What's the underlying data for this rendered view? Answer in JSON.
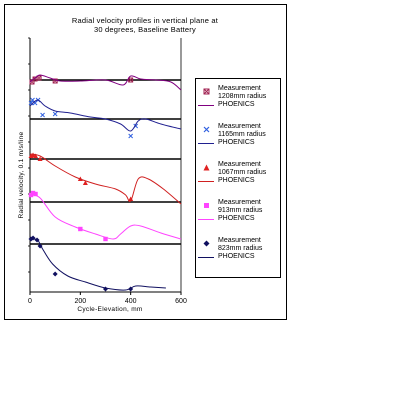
{
  "chart_data": {
    "type": "line",
    "title": "Radial velocity profiles in vertical plane at",
    "subtitle": "30 degrees, Baseline Battery",
    "xlabel": "Cycle-Elevation, mm",
    "ylabel": "Radial velocity, 0.1 m/s/line",
    "xlim": [
      0,
      600
    ],
    "x_ticks": [
      "0",
      "200",
      "400",
      "600"
    ],
    "grid": false,
    "legend_position": "right",
    "baselines": [
      {
        "radius": "1208mm",
        "y": 0
      },
      {
        "radius": "1165mm",
        "y": 0
      },
      {
        "radius": "1067mm",
        "y": 0
      },
      {
        "radius": "913mm",
        "y": 0
      },
      {
        "radius": "823mm",
        "y": 0
      }
    ],
    "series": [
      {
        "name": "Measurement 1208mm radius",
        "kind": "measurement",
        "color": "#a02050",
        "marker": "x-square",
        "points": [
          [
            8,
            -0.02
          ],
          [
            20,
            0.01
          ],
          [
            36,
            0.02
          ],
          [
            100,
            -0.01
          ],
          [
            400,
            0.0
          ]
        ]
      },
      {
        "name": "PHOENICS",
        "kind": "model",
        "color": "#800080",
        "points": [
          [
            0,
            -0.02
          ],
          [
            20,
            0.02
          ],
          [
            40,
            0.05
          ],
          [
            80,
            0.02
          ],
          [
            120,
            -0.01
          ],
          [
            200,
            -0.01
          ],
          [
            300,
            0.0
          ],
          [
            370,
            -0.05
          ],
          [
            400,
            0.04
          ],
          [
            440,
            0.01
          ],
          [
            500,
            0.0
          ],
          [
            560,
            -0.02
          ],
          [
            600,
            -0.1
          ]
        ]
      },
      {
        "name": "Measurement 1165mm radius",
        "kind": "measurement",
        "color": "#3060e0",
        "marker": "x",
        "points": [
          [
            4,
            0.16
          ],
          [
            10,
            0.19
          ],
          [
            20,
            0.16
          ],
          [
            32,
            0.19
          ],
          [
            50,
            0.04
          ],
          [
            100,
            0.05
          ],
          [
            400,
            -0.17
          ],
          [
            420,
            -0.07
          ]
        ]
      },
      {
        "name": "PHOENICS",
        "kind": "model",
        "color": "#202090",
        "points": [
          [
            0,
            0.13
          ],
          [
            30,
            0.19
          ],
          [
            60,
            0.13
          ],
          [
            100,
            0.08
          ],
          [
            160,
            0.06
          ],
          [
            240,
            0.02
          ],
          [
            300,
            0.0
          ],
          [
            360,
            -0.05
          ],
          [
            400,
            -0.12
          ],
          [
            430,
            -0.02
          ],
          [
            460,
            0.0
          ],
          [
            520,
            -0.05
          ],
          [
            600,
            -0.1
          ]
        ]
      },
      {
        "name": "Measurement 1067mm radius",
        "kind": "measurement",
        "color": "#e02020",
        "marker": "triangle",
        "points": [
          [
            4,
            0.03
          ],
          [
            12,
            0.04
          ],
          [
            22,
            0.03
          ],
          [
            40,
            0.0
          ],
          [
            200,
            -0.2
          ],
          [
            220,
            -0.24
          ],
          [
            400,
            -0.4
          ]
        ]
      },
      {
        "name": "PHOENICS",
        "kind": "model",
        "color": "#d02020",
        "points": [
          [
            0,
            0.05
          ],
          [
            40,
            0.03
          ],
          [
            100,
            -0.07
          ],
          [
            180,
            -0.18
          ],
          [
            260,
            -0.25
          ],
          [
            340,
            -0.3
          ],
          [
            380,
            -0.36
          ],
          [
            400,
            -0.42
          ],
          [
            430,
            -0.2
          ],
          [
            470,
            -0.2
          ],
          [
            530,
            -0.3
          ],
          [
            600,
            -0.45
          ]
        ]
      },
      {
        "name": "Measurement 913mm radius",
        "kind": "measurement",
        "color": "#ff44ff",
        "marker": "square",
        "points": [
          [
            4,
            0.07
          ],
          [
            12,
            0.09
          ],
          [
            22,
            0.08
          ],
          [
            200,
            -0.27
          ],
          [
            300,
            -0.37
          ]
        ]
      },
      {
        "name": "PHOENICS",
        "kind": "model",
        "color": "#ff44ff",
        "points": [
          [
            0,
            0.08
          ],
          [
            40,
            0.04
          ],
          [
            100,
            -0.15
          ],
          [
            180,
            -0.25
          ],
          [
            260,
            -0.32
          ],
          [
            330,
            -0.37
          ],
          [
            360,
            -0.32
          ],
          [
            400,
            -0.24
          ],
          [
            440,
            -0.24
          ],
          [
            520,
            -0.31
          ],
          [
            600,
            -0.37
          ]
        ]
      },
      {
        "name": "Measurement 823mm radius",
        "kind": "measurement",
        "color": "#101060",
        "marker": "diamond",
        "points": [
          [
            4,
            0.05
          ],
          [
            12,
            0.06
          ],
          [
            28,
            0.04
          ],
          [
            40,
            -0.02
          ],
          [
            100,
            -0.3
          ],
          [
            300,
            -0.45
          ],
          [
            400,
            -0.45
          ]
        ]
      },
      {
        "name": "PHOENICS",
        "kind": "model",
        "color": "#101060",
        "points": [
          [
            0,
            0.05
          ],
          [
            30,
            0.04
          ],
          [
            50,
            -0.05
          ],
          [
            90,
            -0.2
          ],
          [
            150,
            -0.32
          ],
          [
            220,
            -0.38
          ],
          [
            300,
            -0.44
          ],
          [
            380,
            -0.46
          ],
          [
            420,
            -0.42
          ],
          [
            480,
            -0.43
          ],
          [
            540,
            -0.44
          ]
        ]
      }
    ]
  },
  "legend": {
    "items": [
      {
        "label1": "Measurement",
        "label2": "1208mm radius",
        "model": "PHOENICS"
      },
      {
        "label1": "Measurement",
        "label2": "1165mm radius",
        "model": "PHOENICS"
      },
      {
        "label1": "Measurement",
        "label2": "1067mm radius",
        "model": "PHOENICS"
      },
      {
        "label1": "Measurement",
        "label2": "913mm radius",
        "model": "PHOENICS"
      },
      {
        "label1": "Measurement",
        "label2": "823mm radius",
        "model": "PHOENICS"
      }
    ]
  },
  "colors": {
    "m1208": "#a02050",
    "p1208": "#800080",
    "m1165": "#3060e0",
    "p1165": "#202090",
    "m1067": "#e02020",
    "p1067": "#d02020",
    "m913": "#ff44ff",
    "p913": "#ff44ff",
    "m823": "#101060",
    "p823": "#101060"
  }
}
